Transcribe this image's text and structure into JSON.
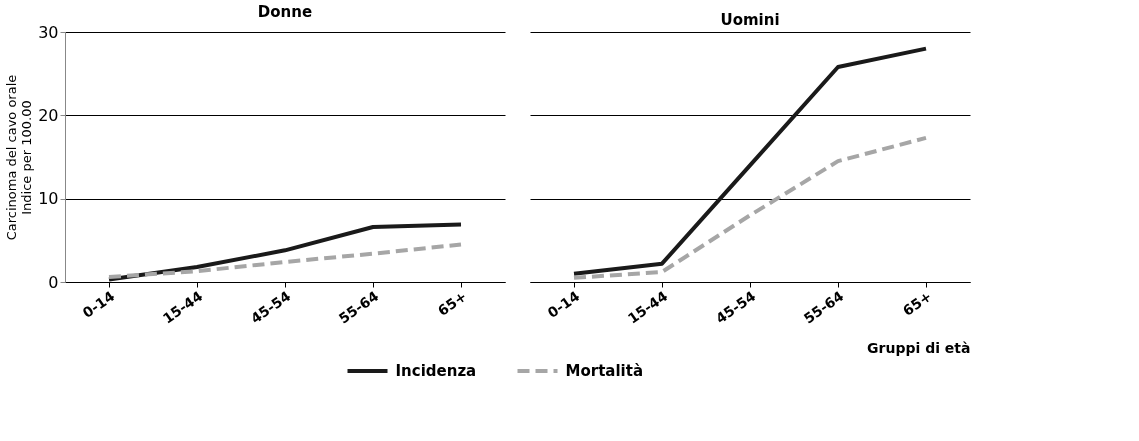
{
  "chart_data": [
    {
      "type": "line",
      "title": "Donne",
      "ylabel": "Carcinoma del cavo orale\nIndice per 100.00",
      "categories": [
        "0-14",
        "15-44",
        "45-54",
        "55-64",
        "65+"
      ],
      "series": [
        {
          "name": "Incidenza",
          "color": "#1a1a1a",
          "line_style": "solid",
          "values": [
            0.3,
            1.8,
            3.8,
            6.6,
            6.9
          ]
        },
        {
          "name": "Mortalità",
          "color": "#a6a6a6",
          "line_style": "dashed",
          "values": [
            0.6,
            1.3,
            2.4,
            3.4,
            4.5
          ]
        }
      ],
      "ylim": [
        0,
        30
      ],
      "yticks": [
        0,
        10,
        20,
        30
      ],
      "grid": "y",
      "legend": "bottom"
    },
    {
      "type": "line",
      "title": "Uomini",
      "xlabel": "Gruppi di età",
      "categories": [
        "0-14",
        "15-44",
        "45-54",
        "55-64",
        "65+"
      ],
      "series": [
        {
          "color": "#1a1a1a",
          "line_style": "solid",
          "values": [
            1.0,
            2.2,
            14.0,
            25.8,
            28.0
          ]
        },
        {
          "color": "#a6a6a6",
          "line_style": "dashed",
          "values": [
            0.5,
            1.2,
            8.0,
            14.5,
            17.3
          ]
        }
      ],
      "ylim": [
        0,
        30
      ],
      "yticks": [
        0,
        10,
        20,
        30
      ],
      "grid": "y",
      "tick_labels": "x"
    }
  ]
}
